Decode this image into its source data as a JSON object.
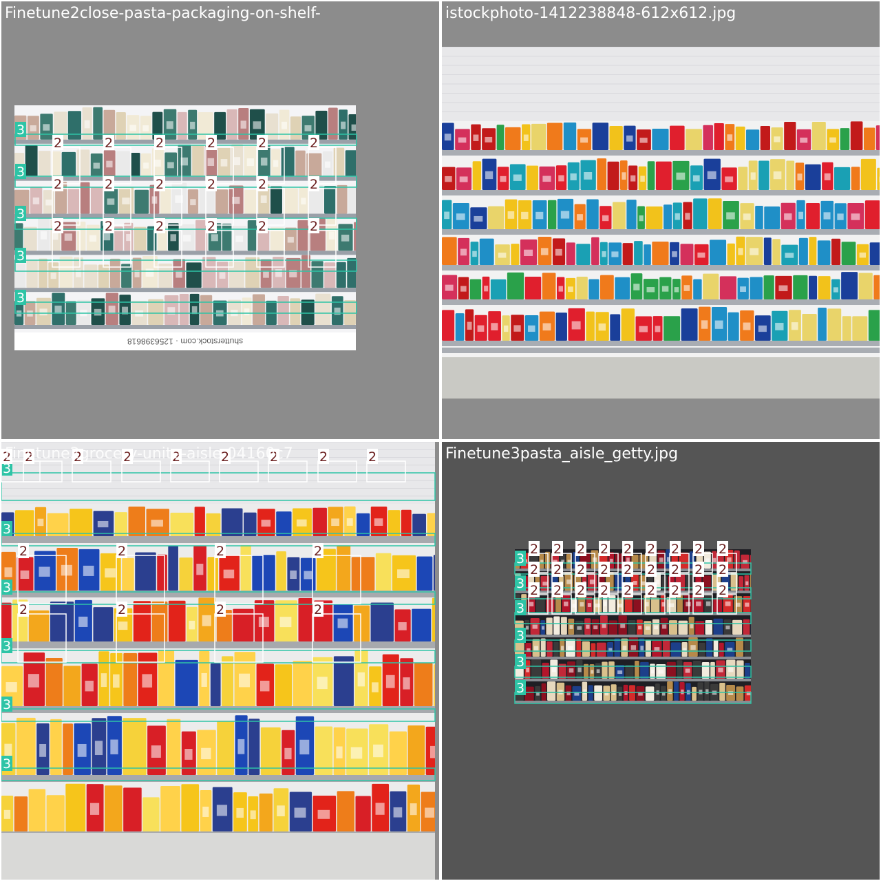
{
  "tiles": [
    {
      "caption": "Finetune2close-pasta-packaging-on-shelf-",
      "background": "#8c8c8c",
      "photo_text": "shutterstock.com · 1256398618"
    },
    {
      "caption": "istockphoto-1412238848-612x612.jpg",
      "background": "#8c8c8c"
    },
    {
      "caption": "Finetune2grocery-unite-aisle-04160c7",
      "background": "#8c8c8c"
    },
    {
      "caption": "Finetune3pasta_aisle_getty.jpg",
      "background": "#555555"
    }
  ],
  "labels": {
    "class_2": "2",
    "class_3": "3"
  },
  "colors": {
    "class_2_box": "#ffffff",
    "class_3_box": "#2ec4a6",
    "class_3_tag": "#2ec4a6",
    "class_2_tag_text": "#6b1f1f"
  },
  "detections": {
    "tile_1": {
      "class_2_count": 18,
      "class_3_count": 5
    },
    "tile_2": {
      "class_2_count": 0,
      "class_3_count": 0
    },
    "tile_3": {
      "class_2_count": 17,
      "class_3_count": 6
    },
    "tile_4": {
      "class_2_count": 27,
      "class_3_count": 6
    }
  }
}
